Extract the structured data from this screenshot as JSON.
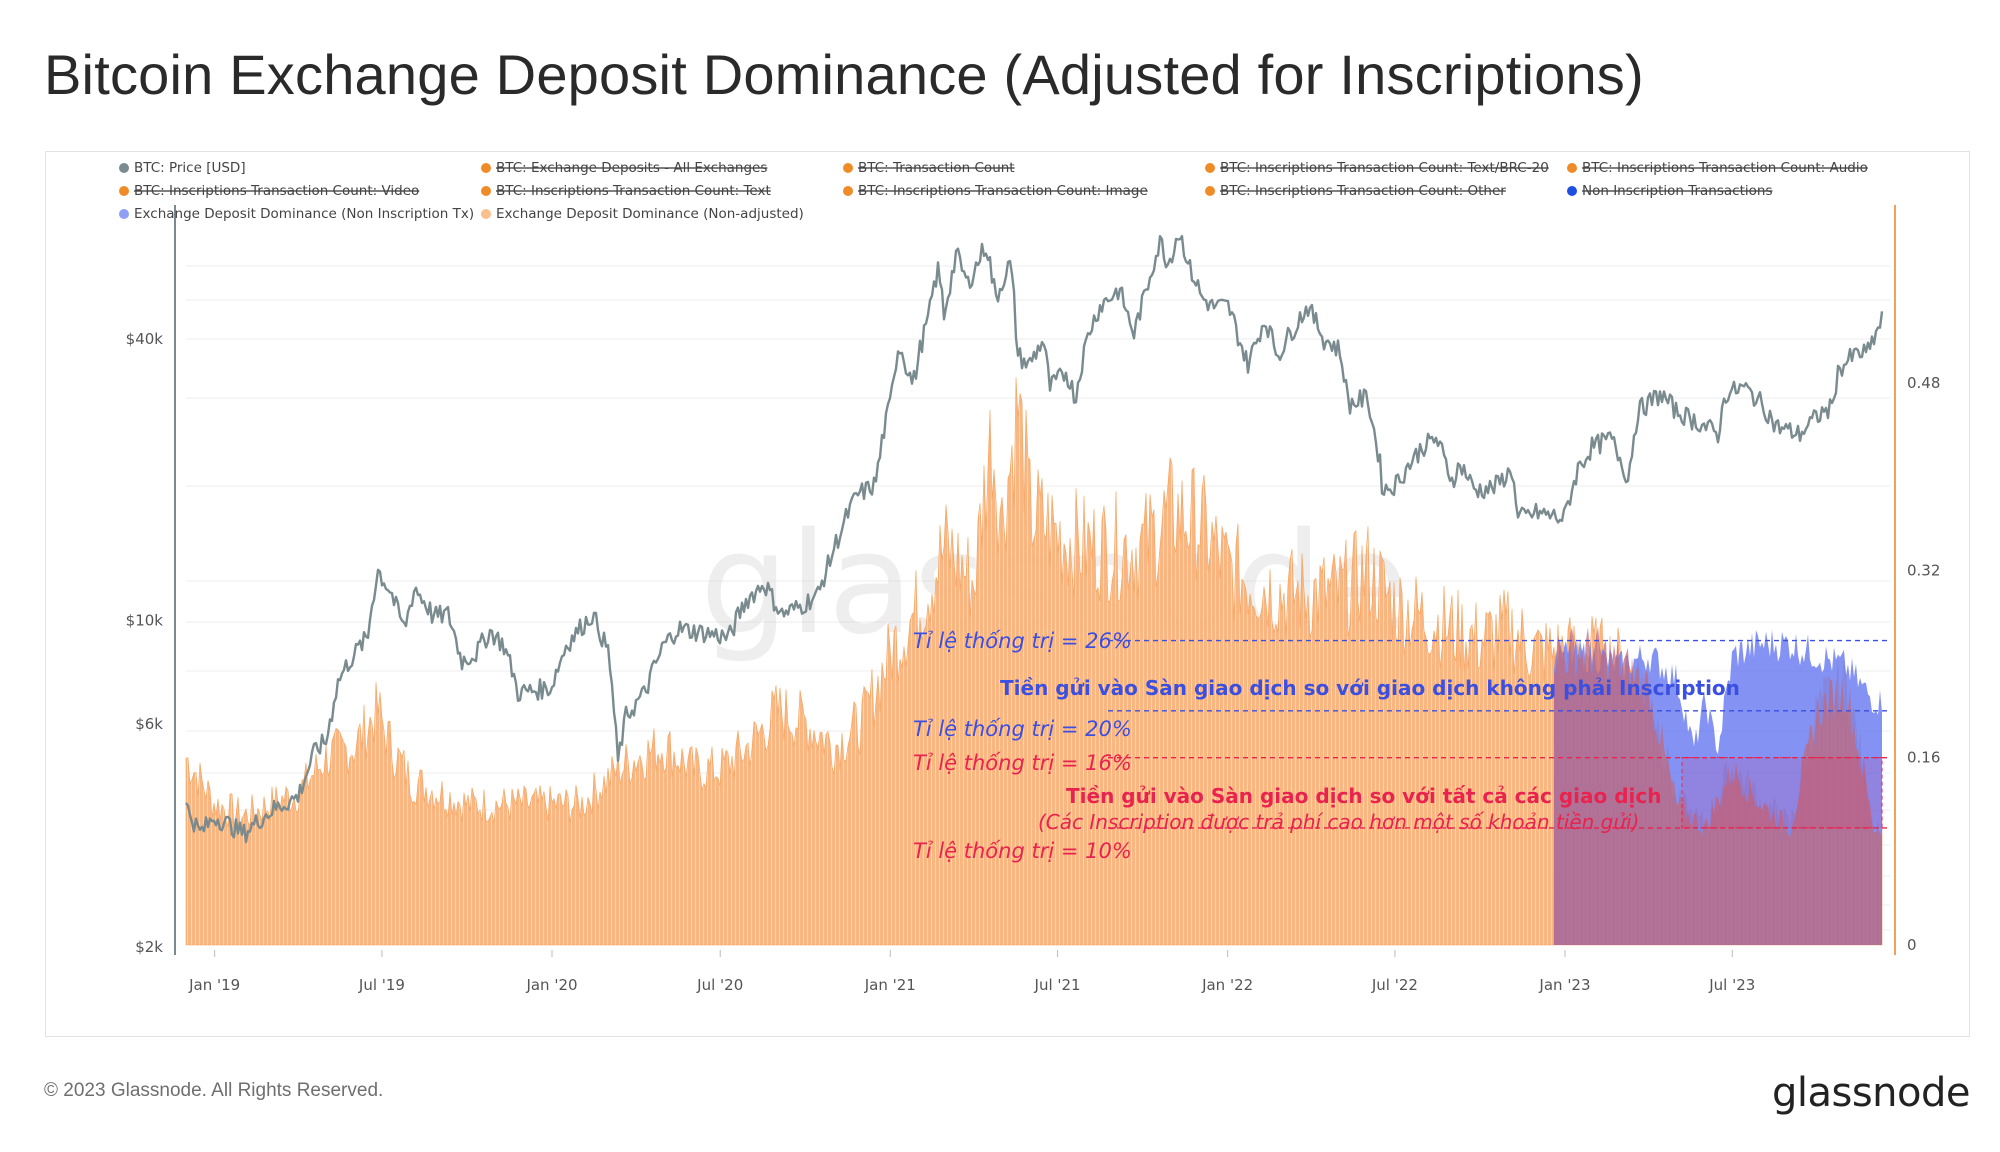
{
  "title": "Bitcoin Exchange Deposit Dominance (Adjusted for Inscriptions)",
  "footer": {
    "copyright": "© 2023 Glassnode. All Rights Reserved.",
    "logo": "glassnode"
  },
  "watermark": "glassnode",
  "legend": [
    {
      "label": "BTC: Price [USD]",
      "color": "#7a8b8f",
      "strike": false
    },
    {
      "label": "BTC: Exchange Deposits - All Exchanges",
      "color": "#f08c28",
      "strike": true
    },
    {
      "label": "BTC: Transaction Count",
      "color": "#f08c28",
      "strike": true
    },
    {
      "label": "BTC: Inscriptions Transaction Count: Text/BRC-20",
      "color": "#f08c28",
      "strike": true
    },
    {
      "label": "BTC: Inscriptions Transaction Count: Audio",
      "color": "#f08c28",
      "strike": true
    },
    {
      "label": "BTC: Inscriptions Transaction Count: Video",
      "color": "#f08c28",
      "strike": true
    },
    {
      "label": "BTC: Inscriptions Transaction Count: Text",
      "color": "#f08c28",
      "strike": true
    },
    {
      "label": "BTC: Inscriptions Transaction Count: Image",
      "color": "#f08c28",
      "strike": true
    },
    {
      "label": "BTC: Inscriptions Transaction Count: Other",
      "color": "#f08c28",
      "strike": true
    },
    {
      "label": "Non Inscription Transactions",
      "color": "#1f4fe0",
      "strike": true
    },
    {
      "label": "Exchange Deposit Dominance (Non Inscription Tx)",
      "color": "#8f9ff5",
      "strike": false
    },
    {
      "label": "Exchange Deposit Dominance (Non-adjusted)",
      "color": "#f9c08d",
      "strike": false
    }
  ],
  "annotations": {
    "ratio_26": "Tỉ lệ thống trị = 26%",
    "ratio_20": "Tỉ lệ thống trị = 20%",
    "ratio_16": "Tỉ lệ thống trị = 16%",
    "ratio_10": "Tỉ lệ thống trị = 10%",
    "non_inscription": "Tiền gửi vào Sàn giao dịch so với giao dịch không phải Inscription",
    "all_tx": "Tiền gửi vào Sàn giao dịch so với tất cả các giao dịch",
    "all_tx_note": "(Các Inscription được trả phí cao hơn một số khoản tiền gửi)"
  },
  "colors": {
    "price": "#7a8b8f",
    "orange": "#f9b27a",
    "orange_edge": "#f5a05a",
    "blue": "#6e7ff2",
    "red": "#e8234f",
    "ann_blue": "#3b4fe0",
    "ann_red": "#e8234f",
    "ann_orange": "#f08c28"
  },
  "chart_data": {
    "type": "line",
    "x_ticks": [
      "Jan '19",
      "Jul '19",
      "Jan '20",
      "Jul '20",
      "Jan '21",
      "Jul '21",
      "Jan '22",
      "Jul '22",
      "Jan '23",
      "Jul '23"
    ],
    "y_left_ticks": [
      "$40k",
      "$10k",
      "$6k",
      "$2k"
    ],
    "y_left_scale": "log",
    "y_left_ticks_values": [
      40000,
      10000,
      6000,
      2000
    ],
    "y_right_ticks": [
      "0.48",
      "0.32",
      "0.16",
      "0"
    ],
    "y_right_range": [
      0,
      0.64
    ],
    "date_range": [
      "2018-12-01",
      "2023-12-10"
    ],
    "series": [
      {
        "name": "BTC: Price [USD]",
        "axis": "left",
        "points": [
          [
            "2018-12-01",
            4000
          ],
          [
            "2018-12-15",
            3500
          ],
          [
            "2019-01-01",
            3800
          ],
          [
            "2019-02-01",
            3500
          ],
          [
            "2019-03-01",
            3900
          ],
          [
            "2019-04-01",
            4200
          ],
          [
            "2019-04-20",
            5300
          ],
          [
            "2019-05-01",
            5500
          ],
          [
            "2019-05-15",
            7500
          ],
          [
            "2019-06-01",
            8500
          ],
          [
            "2019-06-15",
            9200
          ],
          [
            "2019-06-26",
            12800
          ],
          [
            "2019-07-10",
            11500
          ],
          [
            "2019-07-25",
            9500
          ],
          [
            "2019-08-05",
            11800
          ],
          [
            "2019-08-25",
            10200
          ],
          [
            "2019-09-10",
            10300
          ],
          [
            "2019-09-25",
            8200
          ],
          [
            "2019-10-10",
            8500
          ],
          [
            "2019-10-26",
            9500
          ],
          [
            "2019-11-10",
            8800
          ],
          [
            "2019-11-25",
            7000
          ],
          [
            "2019-12-15",
            7100
          ],
          [
            "2019-12-31",
            7200
          ],
          [
            "2020-01-15",
            8800
          ],
          [
            "2020-02-13",
            10300
          ],
          [
            "2020-03-01",
            8600
          ],
          [
            "2020-03-12",
            5000
          ],
          [
            "2020-03-20",
            6200
          ],
          [
            "2020-04-10",
            7000
          ],
          [
            "2020-04-30",
            8800
          ],
          [
            "2020-05-15",
            9600
          ],
          [
            "2020-06-15",
            9400
          ],
          [
            "2020-07-10",
            9200
          ],
          [
            "2020-07-28",
            11000
          ],
          [
            "2020-08-17",
            12000
          ],
          [
            "2020-09-05",
            10300
          ],
          [
            "2020-09-25",
            10700
          ],
          [
            "2020-10-15",
            11400
          ],
          [
            "2020-11-05",
            15000
          ],
          [
            "2020-11-25",
            18500
          ],
          [
            "2020-12-15",
            19500
          ],
          [
            "2020-12-31",
            29000
          ],
          [
            "2021-01-10",
            39000
          ],
          [
            "2021-01-25",
            32000
          ],
          [
            "2021-02-10",
            44000
          ],
          [
            "2021-02-21",
            56000
          ],
          [
            "2021-02-28",
            45000
          ],
          [
            "2021-03-13",
            61000
          ],
          [
            "2021-03-25",
            52000
          ],
          [
            "2021-04-14",
            63500
          ],
          [
            "2021-04-25",
            49000
          ],
          [
            "2021-05-10",
            58000
          ],
          [
            "2021-05-19",
            37000
          ],
          [
            "2021-05-30",
            35000
          ],
          [
            "2021-06-15",
            40000
          ],
          [
            "2021-06-22",
            31500
          ],
          [
            "2021-07-10",
            34000
          ],
          [
            "2021-07-20",
            29800
          ],
          [
            "2021-08-01",
            40000
          ],
          [
            "2021-08-15",
            47000
          ],
          [
            "2021-09-05",
            51000
          ],
          [
            "2021-09-21",
            41000
          ],
          [
            "2021-10-01",
            48000
          ],
          [
            "2021-10-20",
            65000
          ],
          [
            "2021-10-28",
            58000
          ],
          [
            "2021-11-09",
            68000
          ],
          [
            "2021-11-20",
            57000
          ],
          [
            "2021-12-04",
            49000
          ],
          [
            "2021-12-15",
            47000
          ],
          [
            "2022-01-01",
            47000
          ],
          [
            "2022-01-22",
            35000
          ],
          [
            "2022-02-10",
            44000
          ],
          [
            "2022-02-24",
            37000
          ],
          [
            "2022-03-28",
            47000
          ],
          [
            "2022-04-15",
            40000
          ],
          [
            "2022-05-01",
            38000
          ],
          [
            "2022-05-12",
            29000
          ],
          [
            "2022-06-01",
            30000
          ],
          [
            "2022-06-18",
            19000
          ],
          [
            "2022-07-01",
            19500
          ],
          [
            "2022-07-30",
            23500
          ],
          [
            "2022-08-14",
            24500
          ],
          [
            "2022-08-31",
            20000
          ],
          [
            "2022-09-10",
            21500
          ],
          [
            "2022-09-25",
            19000
          ],
          [
            "2022-10-15",
            19200
          ],
          [
            "2022-11-05",
            21000
          ],
          [
            "2022-11-10",
            16500
          ],
          [
            "2022-12-01",
            17000
          ],
          [
            "2022-12-31",
            16500
          ],
          [
            "2023-01-14",
            21000
          ],
          [
            "2023-01-30",
            23500
          ],
          [
            "2023-02-20",
            24500
          ],
          [
            "2023-03-10",
            20000
          ],
          [
            "2023-03-20",
            28000
          ],
          [
            "2023-04-14",
            30500
          ],
          [
            "2023-05-01",
            28000
          ],
          [
            "2023-05-25",
            26500
          ],
          [
            "2023-06-15",
            25000
          ],
          [
            "2023-06-23",
            30500
          ],
          [
            "2023-07-13",
            31500
          ],
          [
            "2023-08-01",
            29200
          ],
          [
            "2023-08-17",
            26000
          ],
          [
            "2023-09-11",
            25000
          ],
          [
            "2023-10-02",
            27500
          ],
          [
            "2023-10-16",
            28500
          ],
          [
            "2023-10-24",
            34500
          ],
          [
            "2023-11-10",
            37000
          ],
          [
            "2023-11-25",
            37500
          ],
          [
            "2023-12-05",
            42000
          ],
          [
            "2023-12-10",
            44000
          ]
        ]
      },
      {
        "name": "Exchange Deposit Dominance (Non-adjusted)",
        "axis": "right",
        "points": [
          [
            "2018-12-01",
            0.16
          ],
          [
            "2019-01-01",
            0.12
          ],
          [
            "2019-02-01",
            0.11
          ],
          [
            "2019-03-01",
            0.12
          ],
          [
            "2019-04-01",
            0.13
          ],
          [
            "2019-05-01",
            0.16
          ],
          [
            "2019-06-01",
            0.17
          ],
          [
            "2019-06-26",
            0.2
          ],
          [
            "2019-07-10",
            0.17
          ],
          [
            "2019-08-01",
            0.14
          ],
          [
            "2019-09-01",
            0.13
          ],
          [
            "2019-10-01",
            0.12
          ],
          [
            "2019-11-01",
            0.12
          ],
          [
            "2019-12-01",
            0.12
          ],
          [
            "2020-01-01",
            0.12
          ],
          [
            "2020-02-01",
            0.12
          ],
          [
            "2020-03-12",
            0.15
          ],
          [
            "2020-04-01",
            0.16
          ],
          [
            "2020-05-01",
            0.17
          ],
          [
            "2020-06-01",
            0.15
          ],
          [
            "2020-07-01",
            0.15
          ],
          [
            "2020-08-01",
            0.17
          ],
          [
            "2020-09-01",
            0.2
          ],
          [
            "2020-10-01",
            0.19
          ],
          [
            "2020-11-01",
            0.17
          ],
          [
            "2020-12-01",
            0.19
          ],
          [
            "2021-01-01",
            0.25
          ],
          [
            "2021-02-01",
            0.29
          ],
          [
            "2021-03-01",
            0.34
          ],
          [
            "2021-04-01",
            0.31
          ],
          [
            "2021-04-20",
            0.44
          ],
          [
            "2021-05-01",
            0.36
          ],
          [
            "2021-05-19",
            0.46
          ],
          [
            "2021-06-01",
            0.37
          ],
          [
            "2021-07-01",
            0.35
          ],
          [
            "2021-08-01",
            0.34
          ],
          [
            "2021-09-01",
            0.34
          ],
          [
            "2021-10-01",
            0.34
          ],
          [
            "2021-11-01",
            0.37
          ],
          [
            "2021-12-01",
            0.36
          ],
          [
            "2022-01-01",
            0.32
          ],
          [
            "2022-02-01",
            0.31
          ],
          [
            "2022-03-01",
            0.3
          ],
          [
            "2022-04-01",
            0.3
          ],
          [
            "2022-05-01",
            0.3
          ],
          [
            "2022-06-01",
            0.32
          ],
          [
            "2022-07-01",
            0.29
          ],
          [
            "2022-08-01",
            0.28
          ],
          [
            "2022-09-01",
            0.27
          ],
          [
            "2022-10-01",
            0.26
          ],
          [
            "2022-11-01",
            0.27
          ],
          [
            "2022-12-01",
            0.25
          ],
          [
            "2023-01-01",
            0.25
          ],
          [
            "2023-02-01",
            0.25
          ],
          [
            "2023-03-01",
            0.24
          ],
          [
            "2023-04-01",
            0.22
          ],
          [
            "2023-05-01",
            0.12
          ],
          [
            "2023-06-01",
            0.1
          ],
          [
            "2023-07-01",
            0.15
          ],
          [
            "2023-08-01",
            0.12
          ],
          [
            "2023-09-01",
            0.1
          ],
          [
            "2023-10-01",
            0.2
          ],
          [
            "2023-11-01",
            0.22
          ],
          [
            "2023-12-01",
            0.1
          ],
          [
            "2023-12-10",
            0.1
          ]
        ]
      },
      {
        "name": "Exchange Deposit Dominance (Non Inscription Tx)",
        "axis": "right",
        "points": [
          [
            "2023-01-01",
            0.25
          ],
          [
            "2023-02-01",
            0.25
          ],
          [
            "2023-03-01",
            0.24
          ],
          [
            "2023-04-01",
            0.25
          ],
          [
            "2023-05-01",
            0.23
          ],
          [
            "2023-05-20",
            0.17
          ],
          [
            "2023-06-01",
            0.21
          ],
          [
            "2023-06-15",
            0.17
          ],
          [
            "2023-07-01",
            0.25
          ],
          [
            "2023-08-01",
            0.26
          ],
          [
            "2023-09-01",
            0.26
          ],
          [
            "2023-10-01",
            0.25
          ],
          [
            "2023-11-01",
            0.24
          ],
          [
            "2023-12-01",
            0.21
          ],
          [
            "2023-12-10",
            0.21
          ]
        ]
      }
    ],
    "reference_lines": [
      {
        "label": "Tỉ lệ thống trị = 26%",
        "value": 0.26
      },
      {
        "label": "Tỉ lệ thống trị = 20%",
        "value": 0.2
      },
      {
        "label": "Tỉ lệ thống trị = 16%",
        "value": 0.16
      },
      {
        "label": "Tỉ lệ thống trị = 10%",
        "value": 0.1
      }
    ]
  }
}
